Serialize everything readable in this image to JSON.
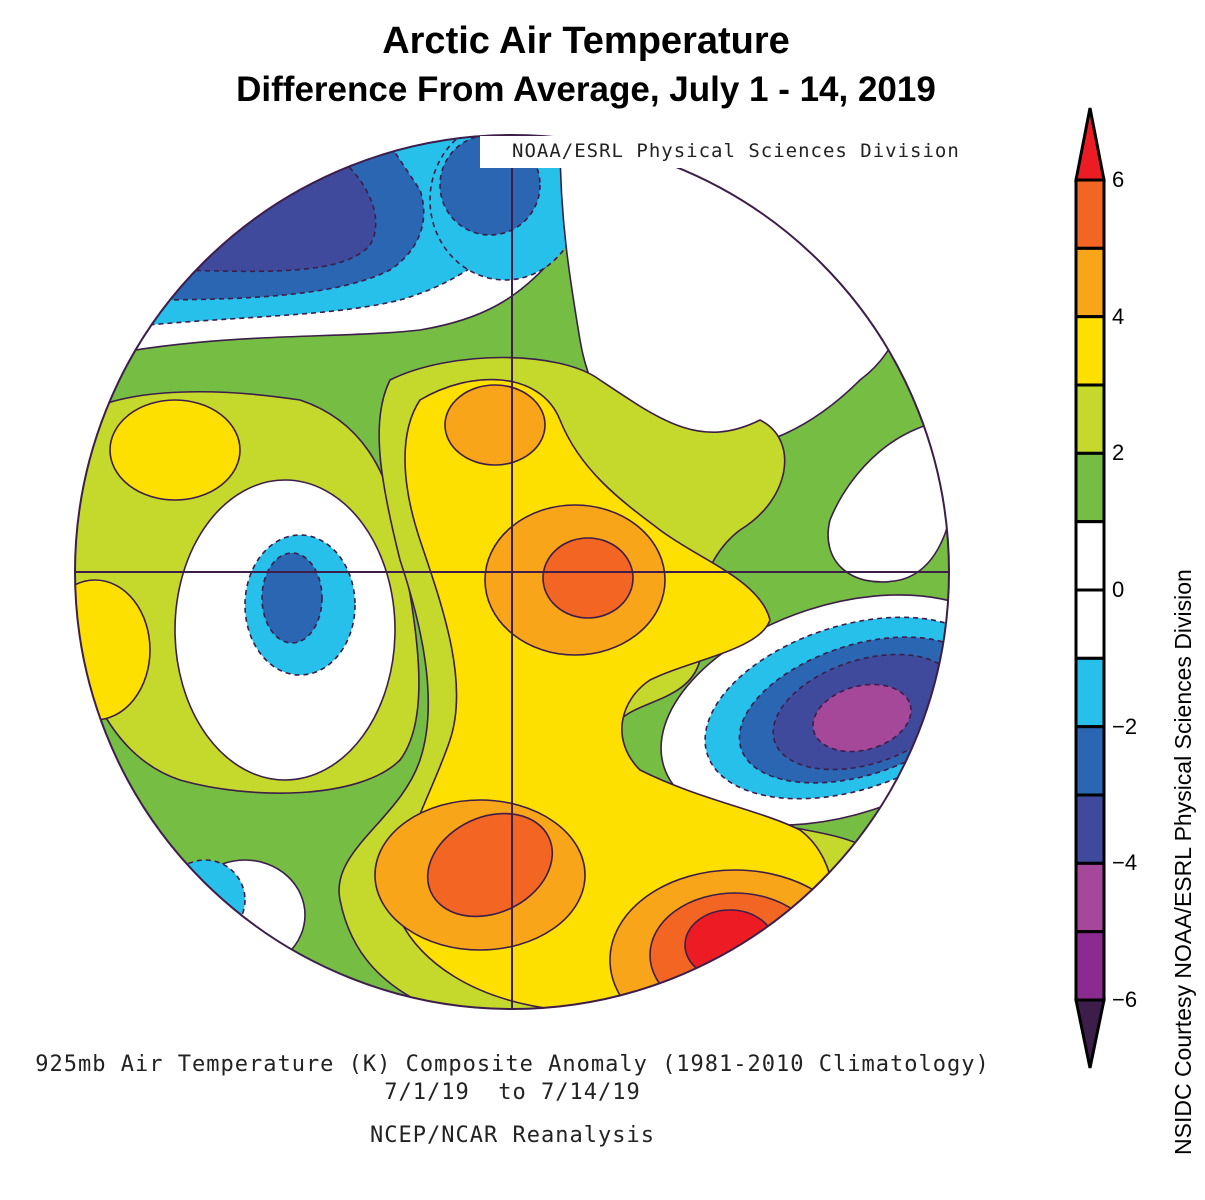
{
  "title": "Arctic Air Temperature",
  "subtitle": "Difference From Average, July 1 - 14, 2019",
  "map_credit": "NOAA/ESRL Physical Sciences Division",
  "footer": {
    "line1": "925mb Air Temperature (K) Composite Anomaly (1981-2010 Climatology)",
    "line2": "7/1/19  to 7/14/19",
    "line3": "NCEP/NCAR Reanalysis"
  },
  "colorbar": {
    "vertical_label": "NSIDC Courtesy NOAA/ESRL Physical Sciences Division",
    "tick_labels": [
      "6",
      "4",
      "2",
      "0",
      "−2",
      "−4",
      "−6"
    ],
    "over_color": "#ed1c24",
    "under_color": "#3d1d4a",
    "box_colors": [
      "#f26522",
      "#f9a51a",
      "#fde000",
      "#c5d92d",
      "#76bd43",
      "#ffffff",
      "#ffffff",
      "#27c0ea",
      "#2a66b1",
      "#3f4a9c",
      "#a5489a",
      "#8b2a8f"
    ],
    "range": [
      -6,
      6
    ],
    "step": 1
  },
  "projection": "north-polar-stereographic"
}
